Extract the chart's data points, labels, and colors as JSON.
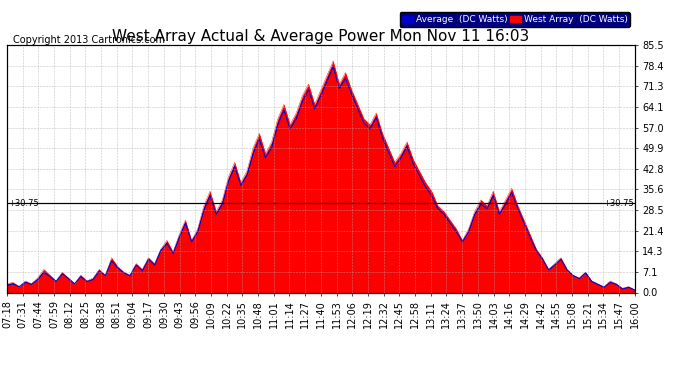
{
  "title": "West Array Actual & Average Power Mon Nov 11 16:03",
  "copyright": "Copyright 2013 Cartronics.com",
  "ylim": [
    0.0,
    85.5
  ],
  "yticks": [
    0.0,
    7.1,
    14.3,
    21.4,
    28.5,
    35.6,
    42.8,
    49.9,
    57.0,
    64.1,
    71.3,
    78.4,
    85.5
  ],
  "hline_value": 30.75,
  "hline_label": "30.75",
  "background_color": "#ffffff",
  "plot_bg_color": "#ffffff",
  "grid_color": "#aaaaaa",
  "fill_color": "#ff0000",
  "avg_color": "#0000cc",
  "legend_avg_label": "Average  (DC Watts)",
  "legend_west_label": "West Array  (DC Watts)",
  "title_fontsize": 11,
  "copyright_fontsize": 7,
  "tick_fontsize": 7,
  "xtick_labels": [
    "07:18",
    "07:31",
    "07:44",
    "07:59",
    "08:12",
    "08:25",
    "08:38",
    "08:51",
    "09:04",
    "09:17",
    "09:30",
    "09:43",
    "09:56",
    "10:09",
    "10:22",
    "10:35",
    "10:48",
    "11:01",
    "11:14",
    "11:27",
    "11:40",
    "11:53",
    "12:06",
    "12:19",
    "12:32",
    "12:45",
    "12:58",
    "13:11",
    "13:24",
    "13:37",
    "13:50",
    "14:03",
    "14:16",
    "14:29",
    "14:42",
    "14:55",
    "15:08",
    "15:21",
    "15:34",
    "15:47",
    "16:00"
  ],
  "west_array_values": [
    3.0,
    3.5,
    2.0,
    4.0,
    3.0,
    5.0,
    8.0,
    6.0,
    4.0,
    7.0,
    5.0,
    3.0,
    6.0,
    4.0,
    5.0,
    8.0,
    6.0,
    12.0,
    9.0,
    7.0,
    6.0,
    10.0,
    8.0,
    12.0,
    10.0,
    15.0,
    18.0,
    14.0,
    20.0,
    25.0,
    18.0,
    22.0,
    30.0,
    35.0,
    28.0,
    32.0,
    40.0,
    45.0,
    38.0,
    42.0,
    50.0,
    55.0,
    48.0,
    52.0,
    60.0,
    65.0,
    58.0,
    62.0,
    68.0,
    72.0,
    65.0,
    70.0,
    75.0,
    80.0,
    72.0,
    76.0,
    70.0,
    65.0,
    60.0,
    58.0,
    62.0,
    55.0,
    50.0,
    45.0,
    48.0,
    52.0,
    46.0,
    42.0,
    38.0,
    35.0,
    30.0,
    28.0,
    25.0,
    22.0,
    18.0,
    22.0,
    28.0,
    32.0,
    30.0,
    35.0,
    28.0,
    32.0,
    36.0,
    30.0,
    25.0,
    20.0,
    15.0,
    12.0,
    8.0,
    10.0,
    12.0,
    8.0,
    6.0,
    5.0,
    7.0,
    4.0,
    3.0,
    2.0,
    4.0,
    3.0,
    1.5,
    2.0,
    1.0
  ],
  "avg_values": [
    2.5,
    3.0,
    2.0,
    3.5,
    2.8,
    4.5,
    7.0,
    5.5,
    3.8,
    6.5,
    4.8,
    3.0,
    5.5,
    3.8,
    4.5,
    7.5,
    5.8,
    11.0,
    8.5,
    6.8,
    5.8,
    9.5,
    7.5,
    11.5,
    9.5,
    14.5,
    17.0,
    13.5,
    19.0,
    24.0,
    17.5,
    21.0,
    28.5,
    33.5,
    27.0,
    30.5,
    38.5,
    43.5,
    37.0,
    40.5,
    48.0,
    53.0,
    46.5,
    50.0,
    58.0,
    63.0,
    56.5,
    60.0,
    66.0,
    70.0,
    63.5,
    68.0,
    73.0,
    78.0,
    70.5,
    74.0,
    68.5,
    63.5,
    58.5,
    56.5,
    60.5,
    53.5,
    48.5,
    43.5,
    46.5,
    50.5,
    44.5,
    40.5,
    36.5,
    33.5,
    29.0,
    27.0,
    24.0,
    21.0,
    17.5,
    21.0,
    27.0,
    30.5,
    29.0,
    33.5,
    27.0,
    30.5,
    34.5,
    29.0,
    24.0,
    19.0,
    14.5,
    11.5,
    7.8,
    9.5,
    11.5,
    7.8,
    5.8,
    4.8,
    6.8,
    3.8,
    2.8,
    1.8,
    3.5,
    2.8,
    1.2,
    1.8,
    0.8
  ]
}
